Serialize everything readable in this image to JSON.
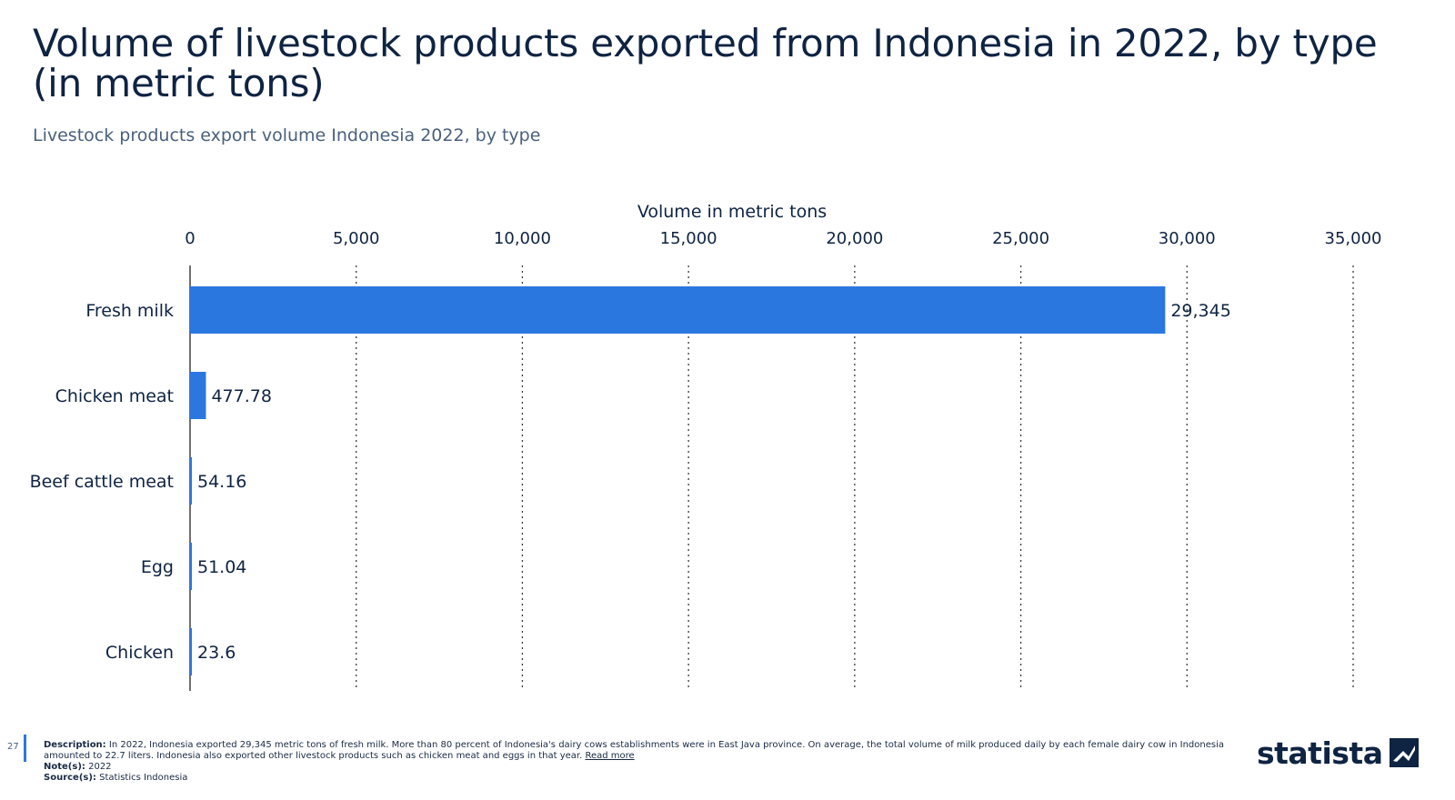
{
  "title": "Volume of livestock products exported from Indonesia in 2022, by type (in metric tons)",
  "subtitle": "Livestock products export volume Indonesia 2022, by type",
  "chart_data": {
    "type": "bar",
    "orientation": "horizontal",
    "xlabel": "Volume in metric tons",
    "xlim": [
      0,
      35000
    ],
    "x_ticks": [
      0,
      5000,
      10000,
      15000,
      20000,
      25000,
      30000,
      35000
    ],
    "x_tick_labels": [
      "0",
      "5,000",
      "10,000",
      "15,000",
      "20,000",
      "25,000",
      "30,000",
      "35,000"
    ],
    "categories": [
      "Fresh milk",
      "Chicken meat",
      "Beef cattle meat",
      "Egg",
      "Chicken"
    ],
    "values": [
      29345,
      477.78,
      54.16,
      51.04,
      23.6
    ],
    "value_labels": [
      "29,345",
      "477.78",
      "54.16",
      "51.04",
      "23.6"
    ],
    "grid": "vertical-dotted",
    "bar_color": "#2b77e0"
  },
  "footer": {
    "page_number": "27",
    "description_label": "Description:",
    "description_text": "In 2022, Indonesia exported 29,345 metric tons of fresh milk. More than 80 percent of Indonesia's dairy cows establishments were in East Java province. On average, the total volume of milk produced daily by each female dairy cow in Indonesia amounted to 22.7 liters. Indonesia also exported other livestock products such as chicken meat and eggs in that year.",
    "read_more": "Read more",
    "notes_label": "Note(s):",
    "notes_text": "2022",
    "source_label": "Source(s):",
    "source_text": "Statistics Indonesia"
  },
  "logo": {
    "text": "statista",
    "icon": "statista-logo-icon"
  }
}
